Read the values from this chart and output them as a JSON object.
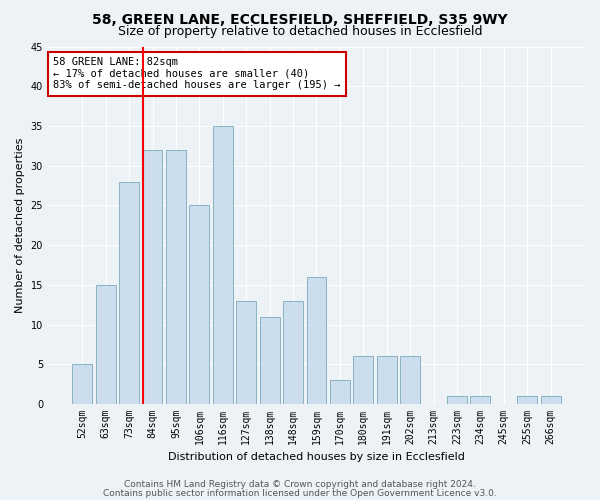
{
  "title1": "58, GREEN LANE, ECCLESFIELD, SHEFFIELD, S35 9WY",
  "title2": "Size of property relative to detached houses in Ecclesfield",
  "xlabel": "Distribution of detached houses by size in Ecclesfield",
  "ylabel": "Number of detached properties",
  "bin_labels": [
    "52sqm",
    "63sqm",
    "73sqm",
    "84sqm",
    "95sqm",
    "106sqm",
    "116sqm",
    "127sqm",
    "138sqm",
    "148sqm",
    "159sqm",
    "170sqm",
    "180sqm",
    "191sqm",
    "202sqm",
    "213sqm",
    "223sqm",
    "234sqm",
    "245sqm",
    "255sqm",
    "266sqm"
  ],
  "bar_values": [
    5,
    15,
    28,
    32,
    32,
    25,
    35,
    13,
    11,
    13,
    16,
    3,
    6,
    6,
    6,
    0,
    1,
    1,
    0,
    1,
    1
  ],
  "bar_color": "#ccdded",
  "bar_edge_color": "#7aaabb",
  "ylim": [
    0,
    45
  ],
  "yticks": [
    0,
    5,
    10,
    15,
    20,
    25,
    30,
    35,
    40,
    45
  ],
  "red_line_index": 3,
  "annotation_text": "58 GREEN LANE: 82sqm\n← 17% of detached houses are smaller (40)\n83% of semi-detached houses are larger (195) →",
  "annotation_box_color": "#ffffff",
  "annotation_box_edge": "#cc0000",
  "footer1": "Contains HM Land Registry data © Crown copyright and database right 2024.",
  "footer2": "Contains public sector information licensed under the Open Government Licence v3.0.",
  "background_color": "#edf2f7",
  "grid_color": "#ffffff",
  "title1_fontsize": 10,
  "title2_fontsize": 9,
  "axis_label_fontsize": 8,
  "tick_fontsize": 7,
  "footer_fontsize": 6.5,
  "annot_fontsize": 7.5
}
